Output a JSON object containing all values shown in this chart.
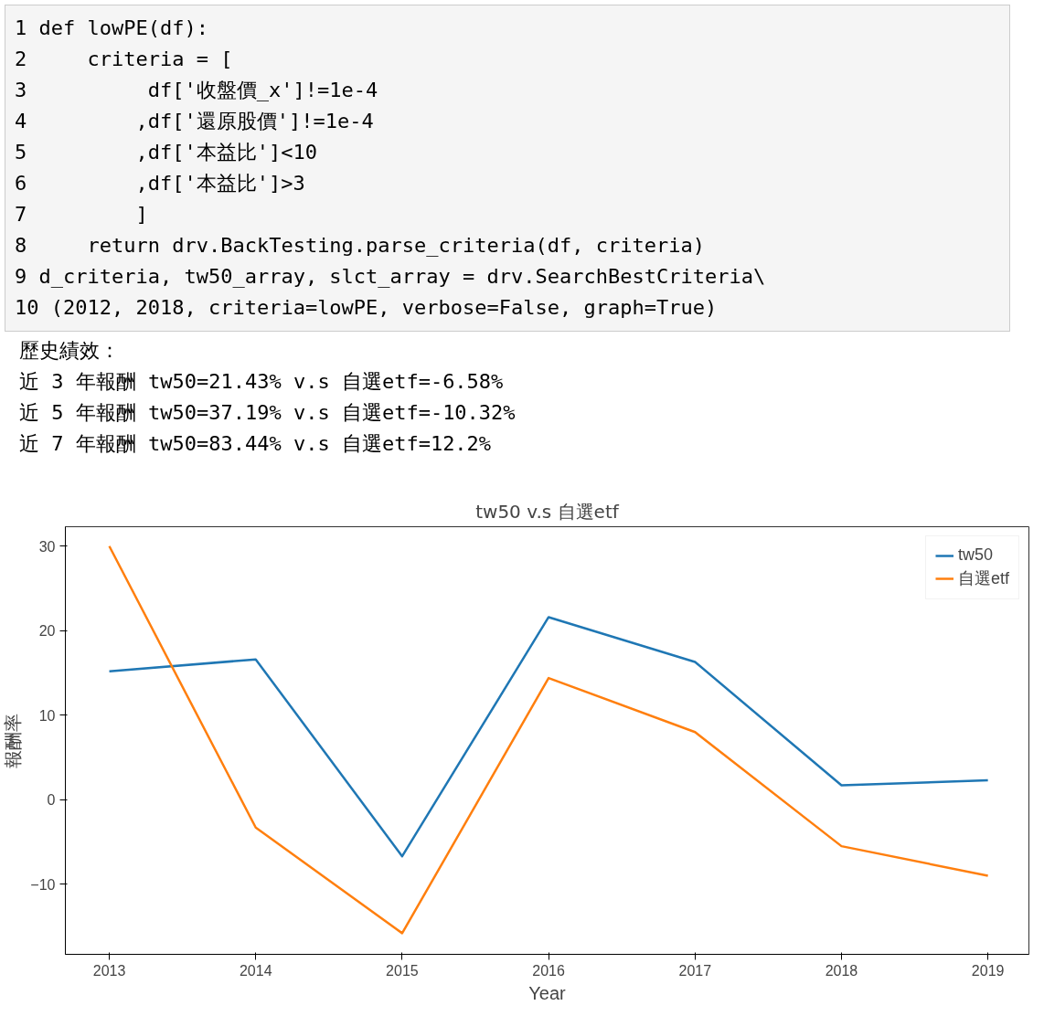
{
  "chart_data": {
    "type": "line",
    "title": "tw50 v.s 自選etf",
    "xlabel": "Year",
    "ylabel": "報酬率",
    "x": [
      2013,
      2014,
      2015,
      2016,
      2017,
      2018,
      2019
    ],
    "series": [
      {
        "name": "tw50",
        "color": "#1f77b4",
        "values": [
          15.2,
          16.6,
          -6.7,
          21.6,
          16.3,
          1.7,
          2.3
        ]
      },
      {
        "name": "自選etf",
        "color": "#ff7f0e",
        "values": [
          30,
          -3.3,
          -15.8,
          14.4,
          8.0,
          -5.5,
          -9.0
        ]
      }
    ],
    "xlim": [
      2012.7,
      2019.28
    ],
    "ylim": [
      -18.3,
      32.3
    ],
    "xticks": [
      2013,
      2014,
      2015,
      2016,
      2017,
      2018,
      2019
    ],
    "yticks": [
      -10,
      0,
      10,
      20,
      30
    ],
    "grid": false,
    "legend": "top right",
    "marker": "none",
    "line_style": "solid",
    "annotations": [
      "1 def lowPE(df):",
      "2     criteria = [",
      "3          df['收盤價_x']!=1e-4",
      "4         ,df['還原股價']!=1e-4",
      "5         ,df['本益比']<10",
      "6         ,df['本益比']>3",
      "7         ]",
      "8     return drv.BackTesting.parse_criteria(df, criteria)",
      "9 d_criteria, tw50_array, slct_array = drv.SearchBestCriteria\\",
      "10 (2012, 2018, criteria=lowPE, verbose=False, graph=True)",
      "歷史績效：",
      "近 3 年報酬 tw50=21.43% v.s 自選etf=-6.58%",
      "近 5 年報酬 tw50=37.19% v.s 自選etf=-10.32%",
      "近 7 年報酬 tw50=83.44% v.s 自選etf=12.2%"
    ]
  }
}
